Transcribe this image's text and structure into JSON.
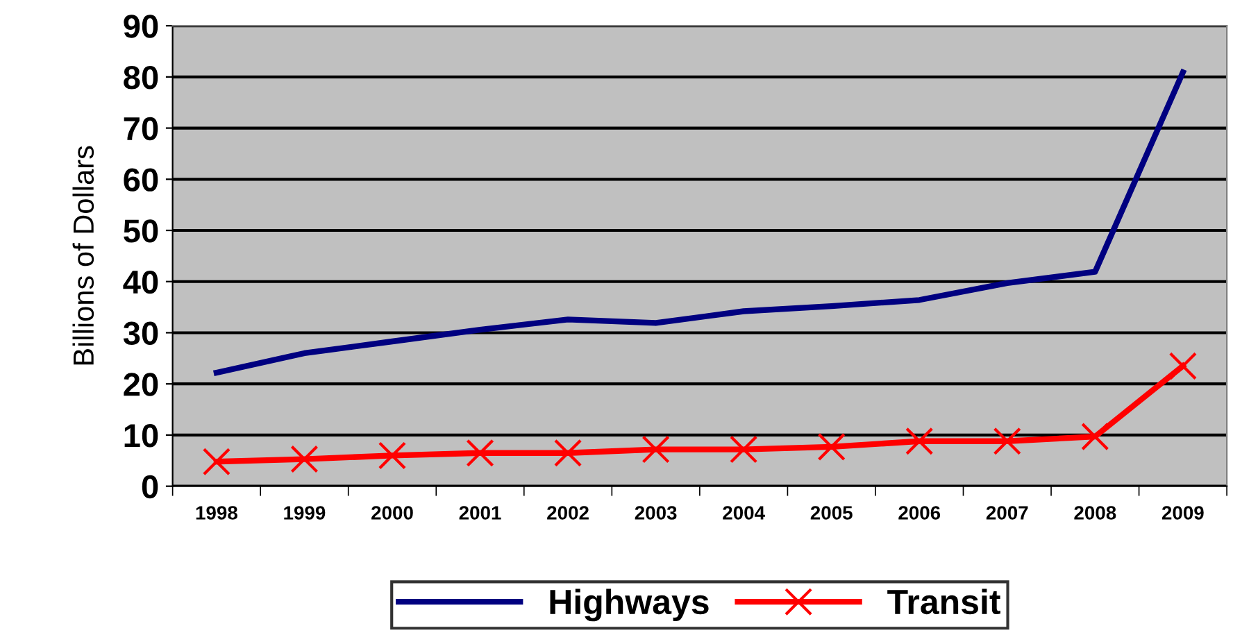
{
  "chart_data": {
    "type": "line",
    "ylabel": "Billions of Dollars",
    "categories": [
      "1998",
      "1999",
      "2000",
      "2001",
      "2002",
      "2003",
      "2004",
      "2005",
      "2006",
      "2007",
      "2008",
      "2009"
    ],
    "series": [
      {
        "name": "Highways",
        "color": "#000080",
        "marker": "none",
        "values": [
          22.2,
          26.0,
          28.3,
          30.6,
          32.6,
          31.9,
          34.2,
          35.2,
          36.4,
          39.7,
          41.9,
          80.9
        ]
      },
      {
        "name": "Transit",
        "color": "#ff0000",
        "marker": "cross",
        "values": [
          4.8,
          5.3,
          6.0,
          6.5,
          6.5,
          7.2,
          7.2,
          7.7,
          8.8,
          8.8,
          9.7,
          23.5
        ]
      }
    ],
    "ylim": [
      0,
      90
    ],
    "yticks": [
      0,
      10,
      20,
      30,
      40,
      50,
      60,
      70,
      80,
      90
    ],
    "grid": "y",
    "legend": "bottom"
  }
}
